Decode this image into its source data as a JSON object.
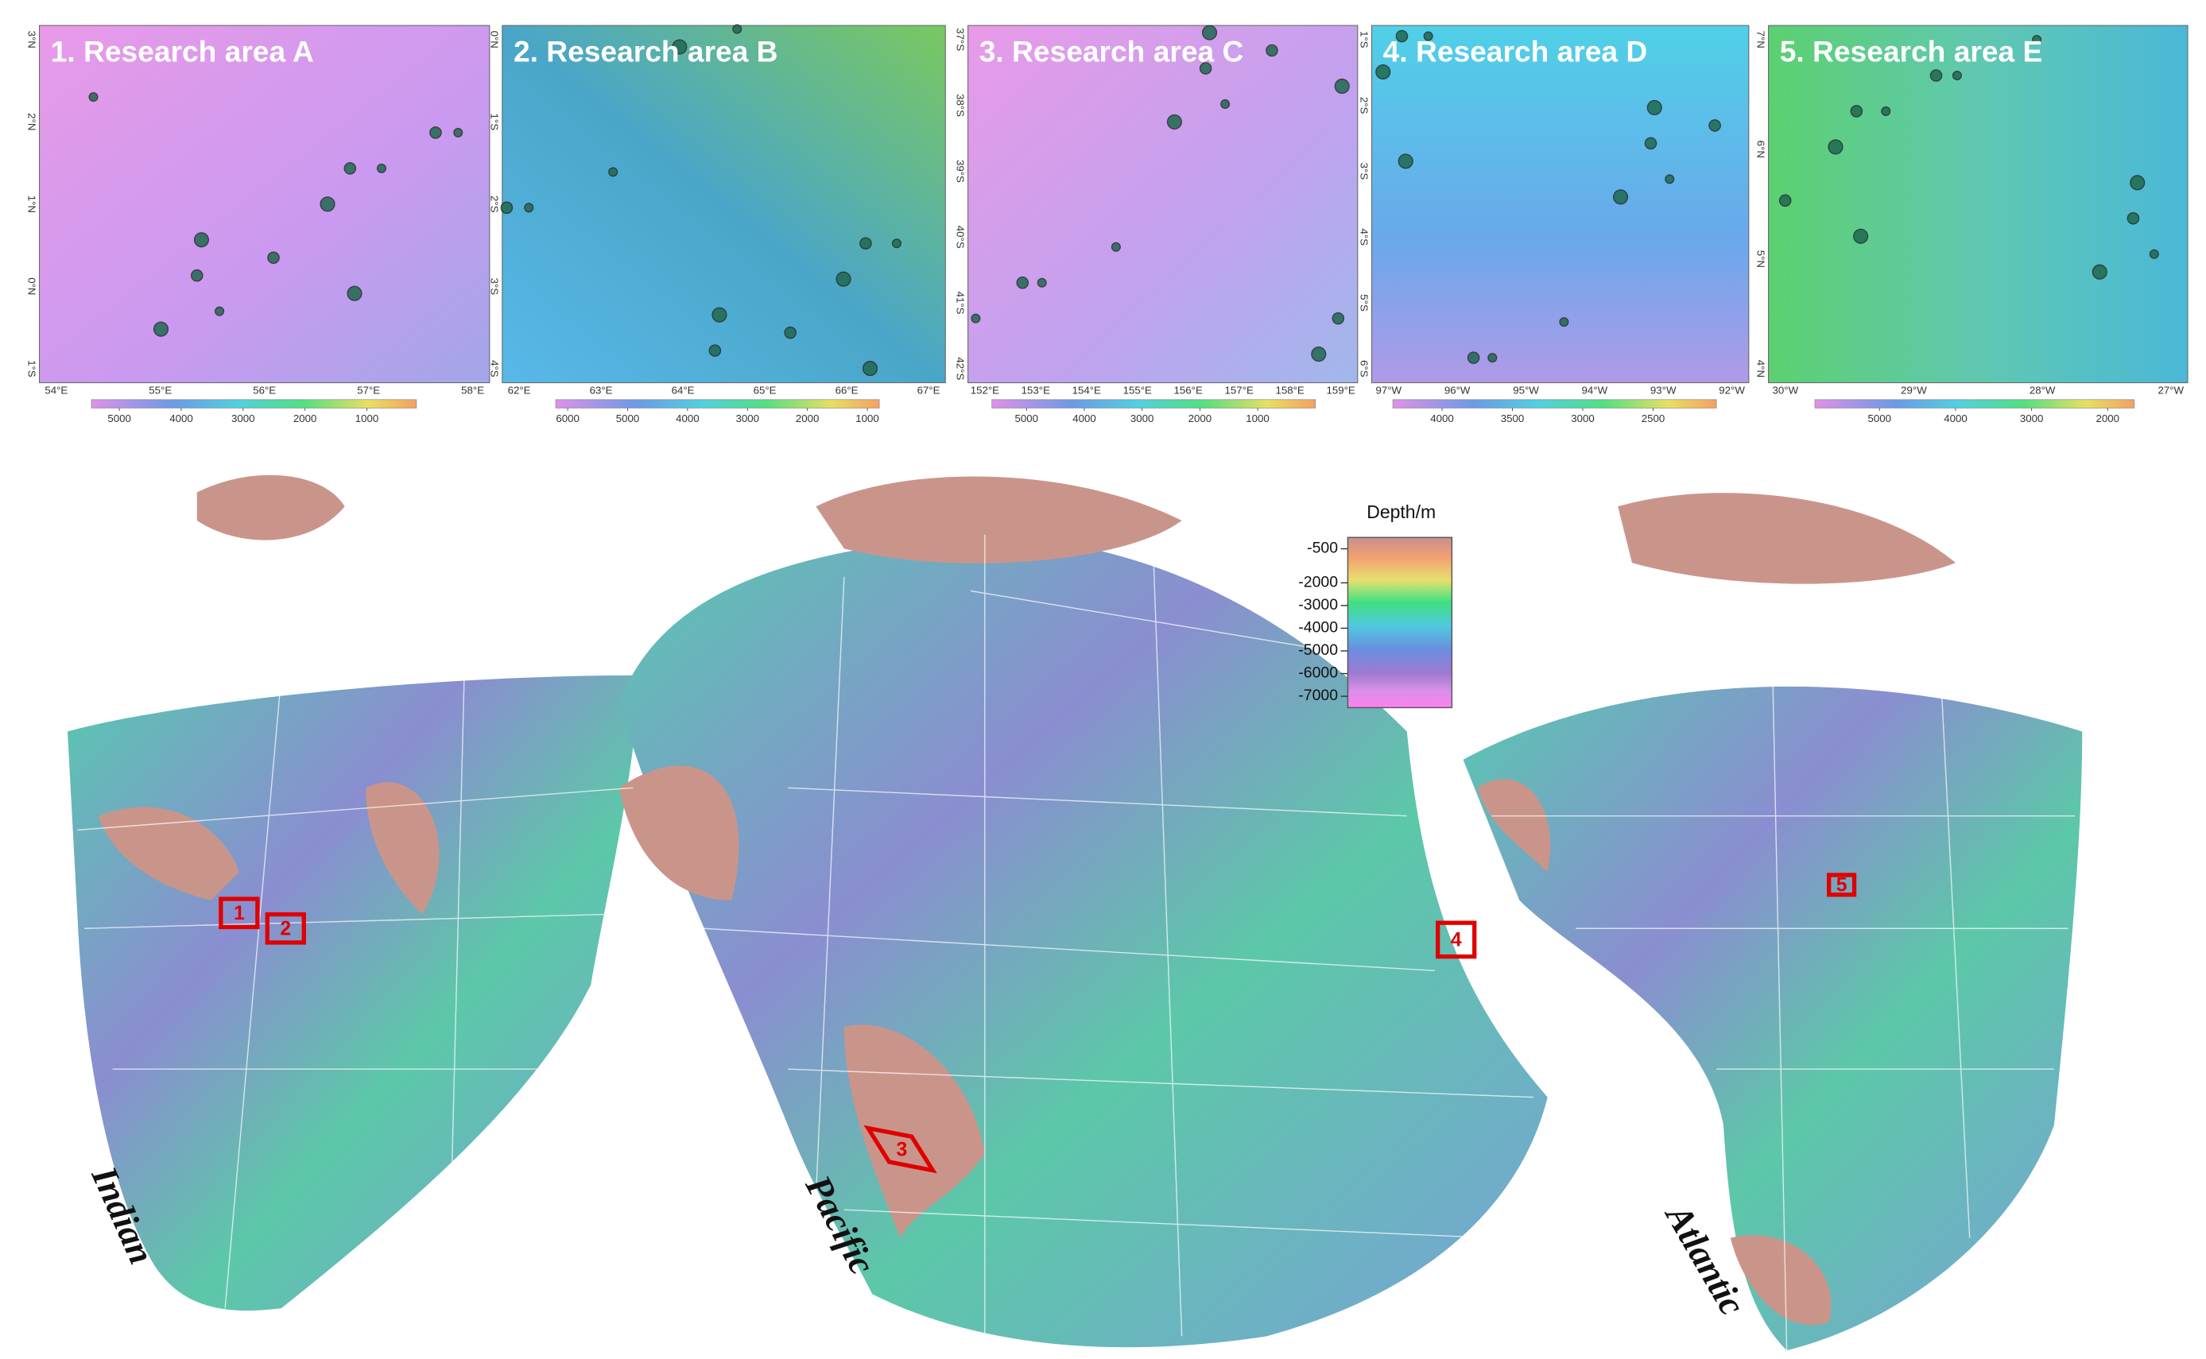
{
  "panels": [
    {
      "title": "1. Research area A",
      "lat_labels": [
        "3°N",
        "2°N",
        "1°N",
        "0°N",
        "1°S"
      ],
      "lon_labels": [
        "54°E",
        "55°E",
        "56°E",
        "57°E",
        "58°E"
      ],
      "colorbar": {
        "ticks": [
          5000,
          4000,
          3000,
          2000,
          1000
        ],
        "lim": [
          5450,
          200
        ]
      }
    },
    {
      "title": "2. Research area B",
      "lat_labels": [
        "0°N",
        "1°S",
        "2°S",
        "3°S",
        "4°S"
      ],
      "lon_labels": [
        "62°E",
        "63°E",
        "64°E",
        "65°E",
        "66°E",
        "67°E"
      ],
      "colorbar": {
        "ticks": [
          6000,
          5000,
          4000,
          3000,
          2000,
          1000
        ],
        "lim": [
          6200,
          800
        ]
      }
    },
    {
      "title": "3. Research area C",
      "lat_labels": [
        "37°S",
        "38°S",
        "39°S",
        "40°S",
        "41°S",
        "42°S"
      ],
      "lon_labels": [
        "152°E",
        "153°E",
        "154°E",
        "155°E",
        "156°E",
        "157°E",
        "158°E",
        "159°E"
      ],
      "colorbar": {
        "ticks": [
          5000,
          4000,
          3000,
          2000,
          1000
        ],
        "lim": [
          5600,
          0
        ]
      }
    },
    {
      "title": "4. Research area D",
      "lat_labels": [
        "1°S",
        "2°S",
        "3°S",
        "4°S",
        "5°S",
        "6°S"
      ],
      "lon_labels": [
        "97°W",
        "96°W",
        "95°W",
        "94°W",
        "93°W",
        "92°W"
      ],
      "colorbar": {
        "ticks": [
          4000,
          3500,
          3000,
          2500
        ],
        "lim": [
          4350,
          2050
        ]
      }
    },
    {
      "title": "5. Research area E",
      "lat_labels": [
        "7°N",
        "6°N",
        "5°N",
        "4°N"
      ],
      "lon_labels": [
        "30°W",
        "29°W",
        "28°W",
        "27°W"
      ],
      "colorbar": {
        "ticks": [
          5000,
          4000,
          3000,
          2000
        ],
        "lim": [
          5850,
          1650
        ]
      }
    }
  ],
  "map": {
    "colorbar": {
      "title": "Depth/m",
      "ticks": [
        -500,
        -2000,
        -3000,
        -4000,
        -5000,
        -6000,
        -7000
      ],
      "lim": [
        -7500,
        0
      ]
    },
    "area_labels": [
      "1",
      "2",
      "3",
      "4",
      "5"
    ],
    "ocean_labels": [
      "Indian",
      "Pacific",
      "Atlantic"
    ]
  }
}
